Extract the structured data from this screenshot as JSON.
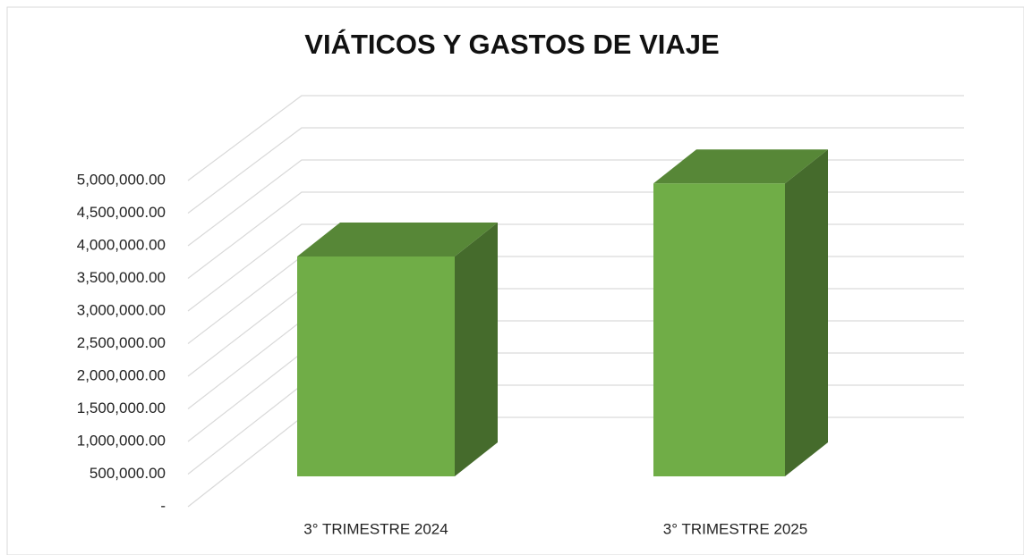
{
  "chart_data": {
    "type": "bar3d",
    "title": "VIÁTICOS Y GASTOS DE VIAJE",
    "categories": [
      "3° TRIMESTRE 2024",
      "3° TRIMESTRE 2025"
    ],
    "values": [
      3370000,
      4490000
    ],
    "color": "#70ad47",
    "ylim": [
      0,
      5000000
    ],
    "yticks": [
      {
        "value": 0,
        "label": "-"
      },
      {
        "value": 500000,
        "label": "500,000.00"
      },
      {
        "value": 1000000,
        "label": "1,000,000.00"
      },
      {
        "value": 1500000,
        "label": "1,500,000.00"
      },
      {
        "value": 2000000,
        "label": "2,000,000.00"
      },
      {
        "value": 2500000,
        "label": "2,500,000.00"
      },
      {
        "value": 3000000,
        "label": "3,000,000.00"
      },
      {
        "value": 3500000,
        "label": "3,500,000.00"
      },
      {
        "value": 4000000,
        "label": "4,000,000.00"
      },
      {
        "value": 4500000,
        "label": "4,500,000.00"
      },
      {
        "value": 5000000,
        "label": "5,000,000.00"
      }
    ],
    "grid": true
  }
}
